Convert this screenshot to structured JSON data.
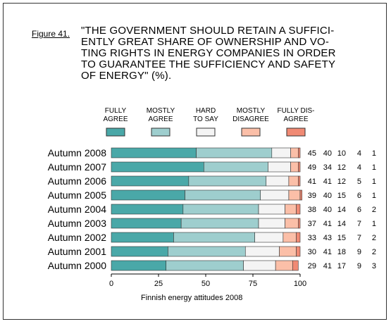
{
  "figure_label": "Figure 41.",
  "title_lines": [
    "\"THE GOVERNMENT SHOULD RETAIN A SUFFICI-",
    "ENTLY GREAT SHARE OF OWNERSHIP AND VO-",
    "TING RIGHTS IN ENERGY COMPANIES IN ORDER",
    "TO GUARANTEE THE SUFFICIENCY AND SAFETY",
    "OF ENERGY\" (%)."
  ],
  "caption": "Finnish energy attitudes 2008",
  "chart_data": {
    "type": "bar",
    "orientation": "horizontal",
    "stacked": true,
    "xlim": [
      0,
      100
    ],
    "xticks": [
      "0",
      "25",
      "50",
      "75",
      "100"
    ],
    "legend_placement": "top",
    "categories": [
      "Autumn 2008",
      "Autumn 2007",
      "Autumn 2006",
      "Autumn 2005",
      "Autumn 2004",
      "Autumn 2003",
      "Autumn 2002",
      "Autumn 2001",
      "Autumn 2000"
    ],
    "series": [
      {
        "name": "FULLY AGREE",
        "legend_lines": [
          "FULLY",
          "AGREE"
        ],
        "color": "#4aa8a8",
        "values": [
          45,
          49,
          41,
          39,
          38,
          37,
          33,
          30,
          29
        ]
      },
      {
        "name": "MOSTLY AGREE",
        "legend_lines": [
          "MOSTLY",
          "AGREE"
        ],
        "color": "#9ecece",
        "values": [
          40,
          34,
          41,
          40,
          40,
          41,
          43,
          41,
          41
        ]
      },
      {
        "name": "HARD TO SAY",
        "legend_lines": [
          "HARD",
          "TO SAY"
        ],
        "color": "#f4f4f4",
        "values": [
          10,
          12,
          12,
          15,
          14,
          14,
          15,
          18,
          17
        ]
      },
      {
        "name": "MOSTLY DISAGREE",
        "legend_lines": [
          "MOSTLY",
          "DISAGREE"
        ],
        "color": "#fbbfa8",
        "values": [
          4,
          4,
          5,
          6,
          6,
          7,
          7,
          9,
          9
        ]
      },
      {
        "name": "FULLY DISAGREE",
        "legend_lines": [
          "FULLY DIS-",
          "AGREE"
        ],
        "color": "#f08a74",
        "values": [
          1,
          1,
          1,
          1,
          2,
          1,
          2,
          2,
          3
        ]
      }
    ]
  }
}
